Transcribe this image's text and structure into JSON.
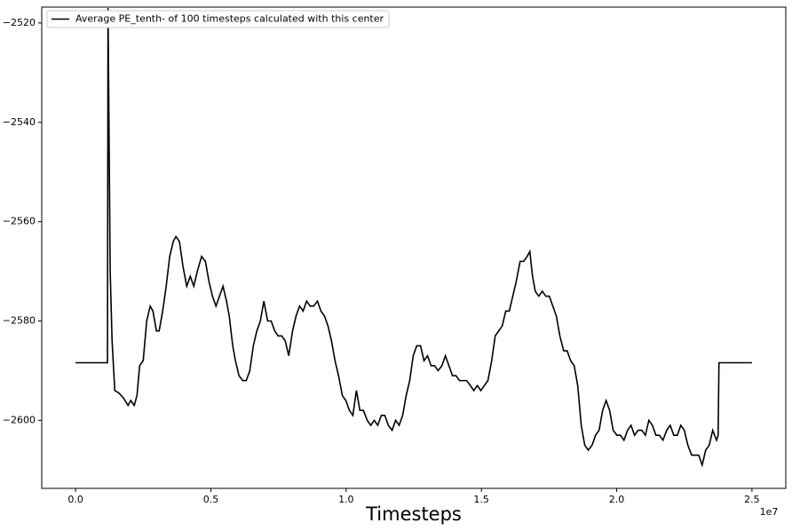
{
  "chart_data": {
    "type": "line",
    "x_label": "Timesteps",
    "x_offset_label": "1e7",
    "x": [
      0,
      1180000,
      1200000,
      1280000,
      1350000,
      1450000,
      1600000,
      1770000,
      1940000,
      2040000,
      2170000,
      2270000,
      2370000,
      2500000,
      2630000,
      2760000,
      2860000,
      2990000,
      3090000,
      3220000,
      3350000,
      3480000,
      3610000,
      3710000,
      3840000,
      3970000,
      4110000,
      4240000,
      4370000,
      4500000,
      4660000,
      4800000,
      4930000,
      5060000,
      5190000,
      5320000,
      5450000,
      5580000,
      5680000,
      5810000,
      5910000,
      6040000,
      6180000,
      6310000,
      6440000,
      6570000,
      6700000,
      6830000,
      6960000,
      7100000,
      7230000,
      7360000,
      7490000,
      7620000,
      7750000,
      7880000,
      8020000,
      8150000,
      8280000,
      8410000,
      8540000,
      8670000,
      8800000,
      8940000,
      9070000,
      9200000,
      9330000,
      9460000,
      9590000,
      9720000,
      9860000,
      9990000,
      10120000,
      10250000,
      10380000,
      10510000,
      10640000,
      10780000,
      10910000,
      11040000,
      11170000,
      11300000,
      11430000,
      11560000,
      11700000,
      11830000,
      11960000,
      12090000,
      12220000,
      12350000,
      12480000,
      12610000,
      12750000,
      12880000,
      13010000,
      13140000,
      13270000,
      13400000,
      13540000,
      13670000,
      13800000,
      13930000,
      14060000,
      14190000,
      14320000,
      14460000,
      14590000,
      14720000,
      14850000,
      14980000,
      15110000,
      15240000,
      15380000,
      15510000,
      15640000,
      15770000,
      15900000,
      16030000,
      16160000,
      16290000,
      16430000,
      16560000,
      16690000,
      16790000,
      16890000,
      16990000,
      17120000,
      17250000,
      17380000,
      17510000,
      17640000,
      17770000,
      17900000,
      18040000,
      18170000,
      18300000,
      18430000,
      18560000,
      18690000,
      18820000,
      18950000,
      19090000,
      19220000,
      19350000,
      19480000,
      19610000,
      19740000,
      19870000,
      20010000,
      20140000,
      20270000,
      20400000,
      20530000,
      20660000,
      20790000,
      20930000,
      21060000,
      21190000,
      21320000,
      21450000,
      21580000,
      21710000,
      21850000,
      21980000,
      22110000,
      22240000,
      22370000,
      22500000,
      22630000,
      22770000,
      22900000,
      23030000,
      23160000,
      23290000,
      23420000,
      23550000,
      23690000,
      23750000,
      23780000,
      25000000
    ],
    "series": [
      {
        "name": "Average PE_tenth- of 100 timesteps calculated with this center",
        "color": "#000000",
        "values": [
          -2588.4,
          -2588.4,
          -2517,
          -2570,
          -2584,
          -2594,
          -2594.5,
          -2595.5,
          -2597,
          -2596,
          -2597,
          -2595,
          -2589,
          -2588,
          -2580,
          -2577,
          -2578,
          -2582,
          -2582,
          -2578,
          -2573,
          -2567,
          -2564,
          -2563,
          -2564,
          -2569,
          -2573,
          -2571,
          -2573,
          -2570,
          -2567,
          -2568,
          -2572,
          -2575,
          -2577,
          -2575,
          -2573,
          -2576,
          -2579,
          -2585,
          -2588,
          -2591,
          -2592,
          -2592,
          -2590,
          -2585,
          -2582,
          -2580,
          -2576,
          -2580,
          -2580,
          -2582,
          -2583,
          -2583,
          -2584,
          -2587,
          -2582,
          -2579,
          -2577,
          -2578,
          -2576,
          -2577,
          -2577,
          -2576,
          -2578,
          -2579,
          -2581,
          -2584,
          -2588,
          -2591,
          -2595,
          -2596,
          -2598,
          -2599,
          -2594,
          -2598,
          -2598,
          -2600,
          -2601,
          -2600,
          -2601,
          -2599,
          -2599,
          -2601,
          -2602,
          -2600,
          -2601,
          -2599,
          -2595,
          -2592,
          -2587,
          -2585,
          -2585,
          -2588,
          -2587,
          -2589,
          -2589,
          -2590,
          -2589,
          -2587,
          -2589,
          -2591,
          -2591,
          -2592,
          -2592,
          -2592,
          -2593,
          -2594,
          -2593,
          -2594,
          -2593,
          -2592,
          -2588,
          -2583,
          -2582,
          -2581,
          -2578,
          -2578,
          -2575,
          -2572,
          -2568,
          -2568,
          -2567,
          -2566,
          -2571,
          -2574,
          -2575,
          -2574,
          -2575,
          -2575,
          -2577,
          -2579,
          -2583,
          -2586,
          -2586,
          -2588,
          -2589,
          -2593,
          -2601,
          -2605,
          -2606,
          -2605,
          -2603,
          -2602,
          -2598,
          -2596,
          -2598,
          -2602,
          -2603,
          -2603,
          -2604,
          -2602,
          -2601,
          -2603,
          -2602,
          -2602,
          -2603,
          -2600,
          -2601,
          -2603,
          -2603,
          -2604,
          -2602,
          -2601,
          -2603,
          -2603,
          -2601,
          -2602,
          -2605,
          -2607,
          -2607,
          -2607,
          -2609,
          -2606,
          -2605,
          -2602,
          -2604,
          -2603,
          -2588.4,
          -2588.4
        ]
      }
    ],
    "xlim": [
      -1250000,
      26250000
    ],
    "xticks": [
      {
        "value": 0,
        "label": "0.0"
      },
      {
        "value": 5000000,
        "label": "0.5"
      },
      {
        "value": 10000000,
        "label": "1.0"
      },
      {
        "value": 15000000,
        "label": "1.5"
      },
      {
        "value": 20000000,
        "label": "2.0"
      },
      {
        "value": 25000000,
        "label": "2.5"
      }
    ],
    "ylim": [
      -2613.7,
      -2516.8
    ],
    "yticks": [
      {
        "value": -2600,
        "label": "−2600"
      },
      {
        "value": -2580,
        "label": "−2580"
      },
      {
        "value": -2560,
        "label": "−2560"
      },
      {
        "value": -2540,
        "label": "−2540"
      },
      {
        "value": -2520,
        "label": "−2520"
      }
    ],
    "legend": "upper left",
    "grid": false
  }
}
